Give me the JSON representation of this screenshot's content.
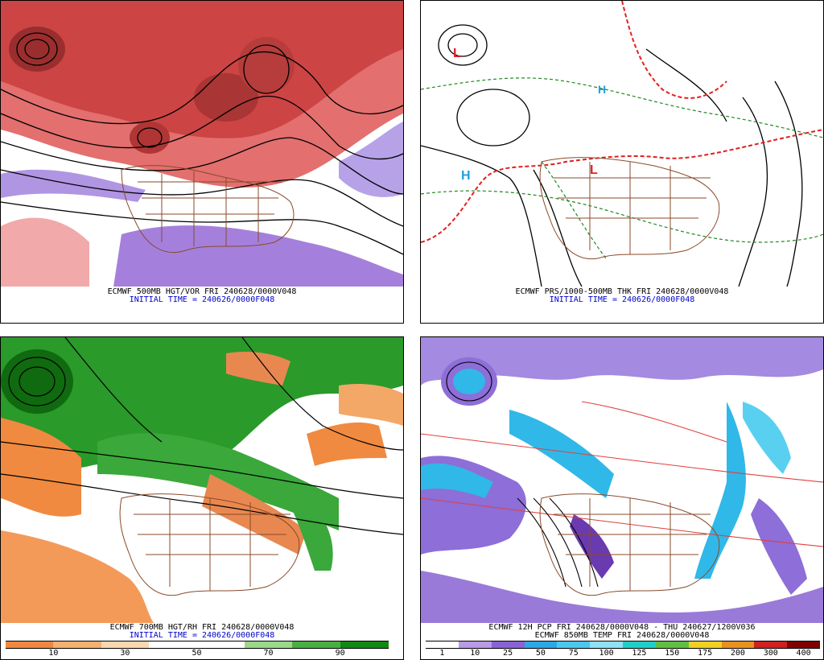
{
  "panels": {
    "p1": {
      "title": "ECMWF 500MB HGT/VOR FRI 240628/0000V048",
      "init": "INITIAL TIME = 240626/0000F048"
    },
    "p2": {
      "title": "ECMWF PRS/1000-500MB THK FRI 240628/0000V048",
      "init": "INITIAL TIME = 240626/0000F048"
    },
    "p3": {
      "title": "ECMWF 700MB HGT/RH FRI 240628/0000V048",
      "init": "INITIAL TIME = 240626/0000F048",
      "colorbar": {
        "ticks": [
          "10",
          "30",
          "50",
          "70",
          "90"
        ],
        "colors": [
          "#f08840",
          "#f6b070",
          "#fcd8b0",
          "#ffffff",
          "#ffffff",
          "#9ad88a",
          "#48b040",
          "#108a10"
        ]
      }
    },
    "p4": {
      "title": "ECMWF 12H PCP FRI 240628/0000V048 - THU 240627/1200V036",
      "subtitle": "ECMWF 850MB TEMP FRI 240628/0000V048",
      "colorbar": {
        "ticks": [
          "1",
          "10",
          "25",
          "50",
          "75",
          "100",
          "125",
          "150",
          "175",
          "200",
          "300",
          "400"
        ],
        "colors": [
          "#ffffff",
          "#b89ae8",
          "#8a62d8",
          "#2aa8e8",
          "#4ac8f0",
          "#90e0f8",
          "#20d0c8",
          "#60c040",
          "#f0d020",
          "#e89020",
          "#d02020",
          "#800000"
        ]
      }
    }
  },
  "icons": [
    "contour-map",
    "color-scale"
  ]
}
